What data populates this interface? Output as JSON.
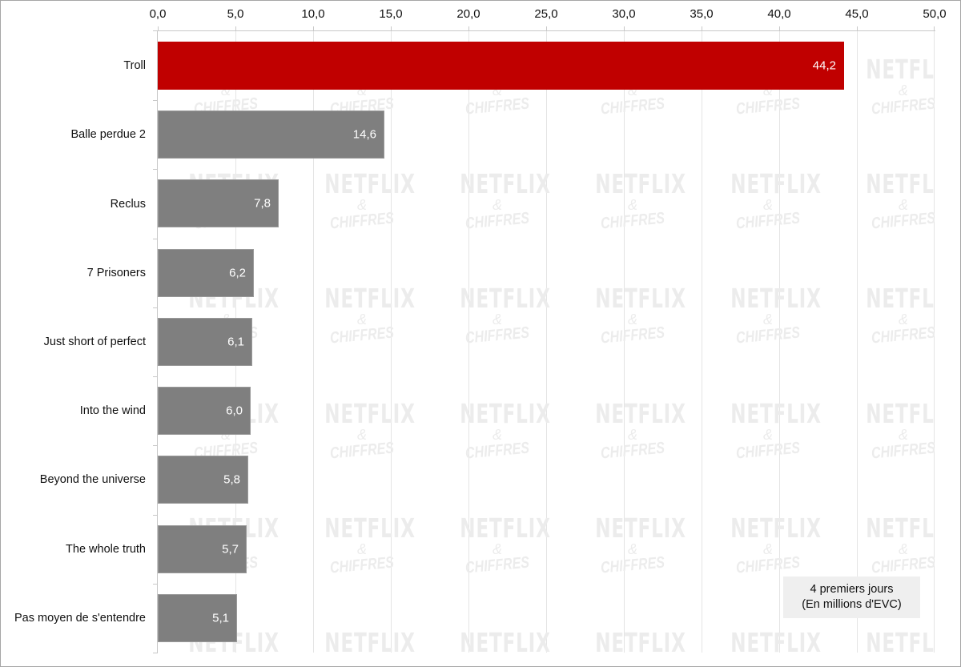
{
  "chart_data": {
    "type": "bar",
    "orientation": "horizontal",
    "title": "",
    "xlabel": "",
    "ylabel": "",
    "xlim": [
      0,
      50
    ],
    "x_ticks": [
      "0,0",
      "5,0",
      "10,0",
      "15,0",
      "20,0",
      "25,0",
      "30,0",
      "35,0",
      "40,0",
      "45,0",
      "50,0"
    ],
    "x_axis_position": "top",
    "grid": true,
    "categories": [
      "Troll",
      "Balle perdue 2",
      "Reclus",
      "7 Prisoners",
      "Just short of perfect",
      "Into the wind",
      "Beyond the universe",
      "The whole truth",
      "Pas moyen de s'entendre"
    ],
    "values": [
      44.2,
      14.6,
      7.8,
      6.2,
      6.1,
      6.0,
      5.8,
      5.7,
      5.1
    ],
    "value_labels": [
      "44,2",
      "14,6",
      "7,8",
      "6,2",
      "6,1",
      "6,0",
      "5,8",
      "5,7",
      "5,1"
    ],
    "bar_colors": [
      "#c00000",
      "#7f7f7f",
      "#7f7f7f",
      "#7f7f7f",
      "#7f7f7f",
      "#7f7f7f",
      "#7f7f7f",
      "#7f7f7f",
      "#7f7f7f"
    ],
    "annotation": [
      "4 premiers jours",
      "(En millions d'EVC)"
    ],
    "legend": null
  },
  "watermark": {
    "line1": "NETFLIX",
    "line2": "&",
    "line3": "CHIFFRES"
  },
  "colors": {
    "highlight": "#c00000",
    "default_bar": "#7f7f7f",
    "gridline": "#e4e4e4",
    "note_bg": "#efefef"
  }
}
